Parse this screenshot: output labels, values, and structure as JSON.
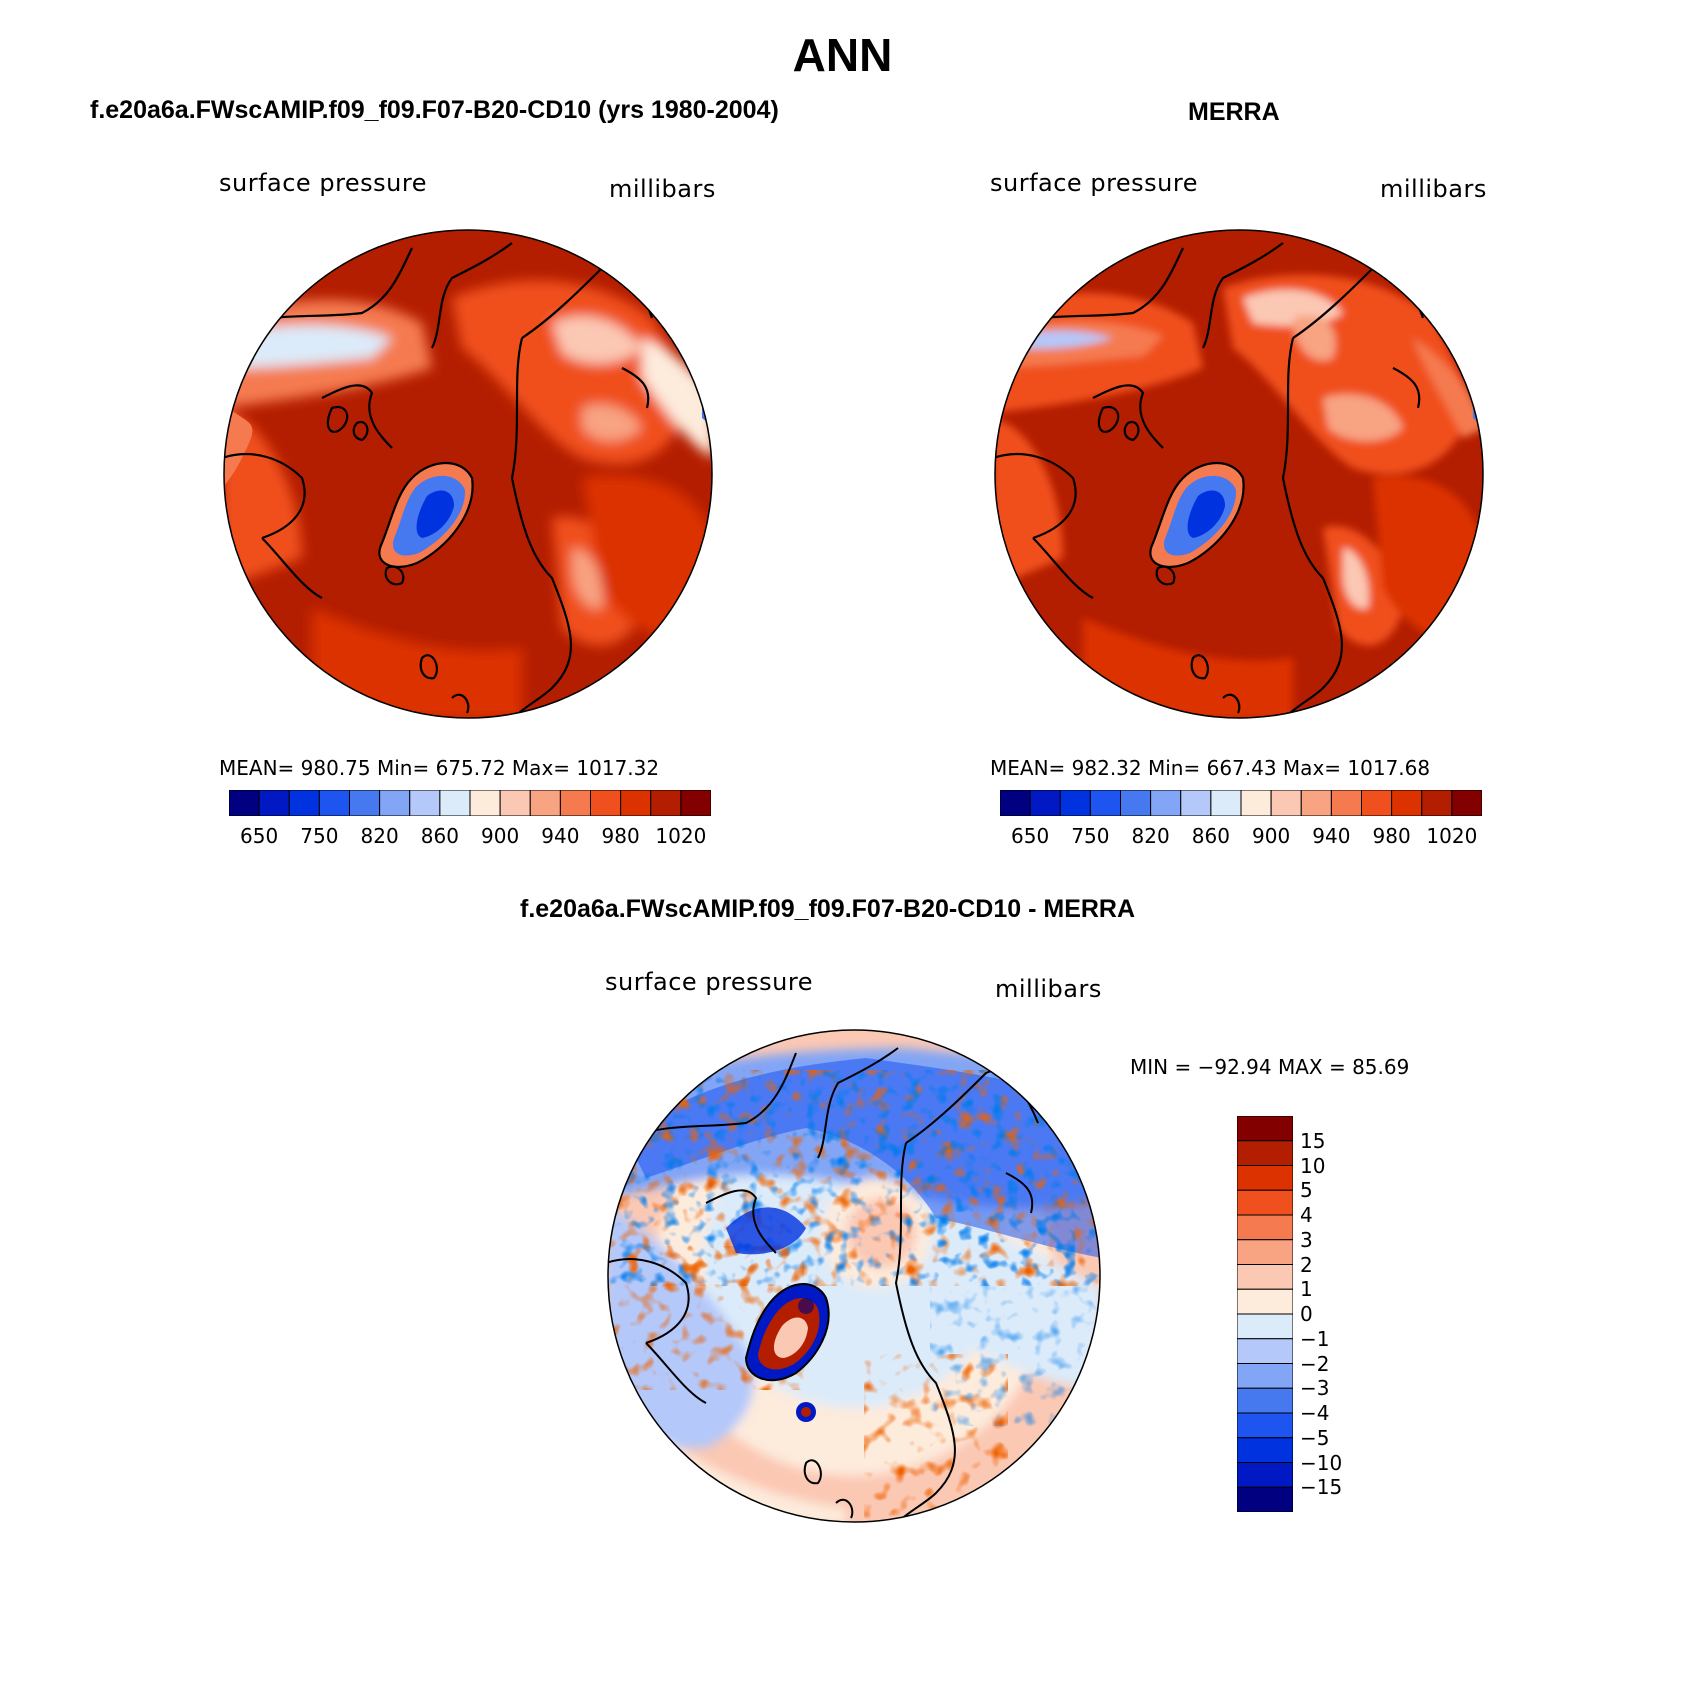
{
  "figure": {
    "title": "ANN"
  },
  "panels": [
    {
      "name": "model",
      "title": "f.e20a6a.FWscAMIP.f09_f09.F07-B20-CD10 (yrs 1980-2004)",
      "left_label": "surface pressure",
      "right_label": "millibars",
      "stats": {
        "mean": "980.75",
        "min": "675.72",
        "max": "1017.32"
      },
      "stats_text": "MEAN= 980.75   Min= 675.72   Max= 1017.32"
    },
    {
      "name": "obs",
      "title": "MERRA",
      "left_label": "surface pressure",
      "right_label": "millibars",
      "stats": {
        "mean": "982.32",
        "min": "667.43",
        "max": "1017.68"
      },
      "stats_text": "MEAN= 982.32   Min= 667.43   Max= 1017.68"
    },
    {
      "name": "difference",
      "title": "f.e20a6a.FWscAMIP.f09_f09.F07-B20-CD10 - MERRA",
      "left_label": "surface pressure",
      "right_label": "millibars",
      "stats": {
        "min": "-92.94",
        "max": "85.69"
      },
      "stats_text": "MIN = −92.94 MAX =   85.69"
    }
  ],
  "colorbar_abs": {
    "colors": [
      "#000080",
      "#0019c4",
      "#0032e0",
      "#1e55f0",
      "#4678f0",
      "#82a5f5",
      "#b4c8fa",
      "#dcebfa",
      "#fdebdc",
      "#fbc8b4",
      "#f8a382",
      "#f57a50",
      "#f0501e",
      "#dc3200",
      "#b41e00",
      "#820000"
    ],
    "tick_labels": [
      "650",
      "750",
      "820",
      "860",
      "900",
      "940",
      "980",
      "1020"
    ]
  },
  "colorbar_diff": {
    "colors": [
      "#820000",
      "#b41e00",
      "#dc3200",
      "#f0501e",
      "#f57a50",
      "#f8a382",
      "#fbc8b4",
      "#fdebdc",
      "#dcebfa",
      "#b4c8fa",
      "#82a5f5",
      "#4678f0",
      "#1e55f0",
      "#0032e0",
      "#0019c4",
      "#000080"
    ],
    "tick_labels": [
      "15",
      "10",
      "5",
      "4",
      "3",
      "2",
      "1",
      "0",
      "−1",
      "−2",
      "−3",
      "−4",
      "−5",
      "−10",
      "−15"
    ]
  }
}
